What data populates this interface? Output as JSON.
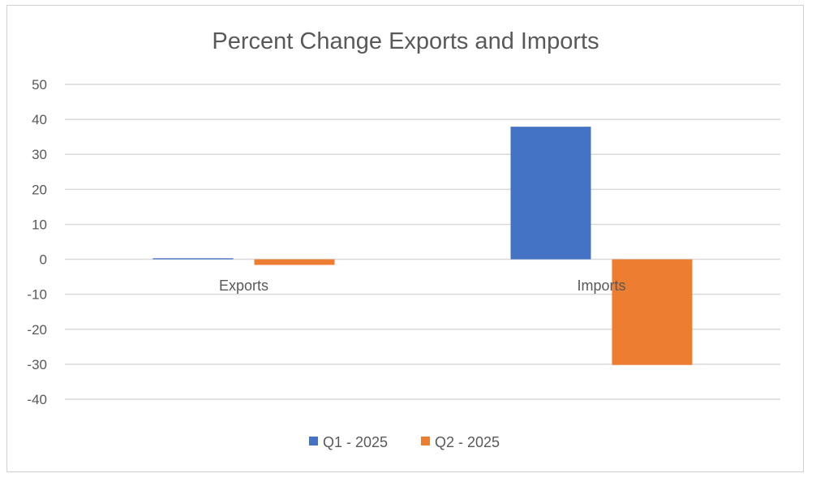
{
  "chart_data": {
    "type": "bar",
    "title": "Percent Change Exports and Imports",
    "categories": [
      "Exports",
      "Imports"
    ],
    "series": [
      {
        "name": "Q1 - 2025",
        "color": "#4472C4",
        "values": [
          0.3,
          37.9
        ]
      },
      {
        "name": "Q2 - 2025",
        "color": "#ED7D31",
        "values": [
          -1.6,
          -30.2
        ]
      }
    ],
    "ylim": [
      -40,
      50
    ],
    "yticks": [
      50,
      40,
      30,
      20,
      10,
      0,
      -10,
      -20,
      -30,
      -40
    ],
    "grid": true,
    "legend": "bottom",
    "xlabel": "",
    "ylabel": ""
  }
}
